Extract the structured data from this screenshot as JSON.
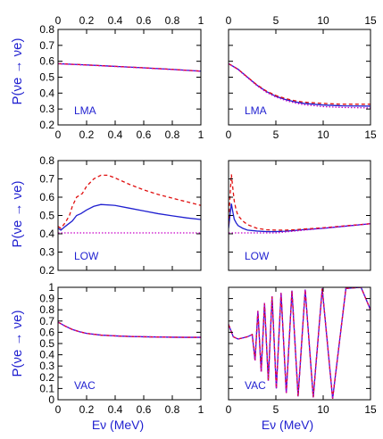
{
  "colors": {
    "blue": "#1f1fd0",
    "red": "#e01010",
    "magenta": "#c800c8",
    "axis": "#000000"
  },
  "ylabel": "P(νe → νe)",
  "xlabel": "Eν (MeV)",
  "chart_data": [
    {
      "type": "line",
      "row": 0,
      "col": 0,
      "label": "LMA",
      "xlim": [
        0,
        1
      ],
      "ylim": [
        0.2,
        0.8
      ],
      "xticks": [
        0,
        0.2,
        0.4,
        0.6,
        0.8,
        1
      ],
      "xticklabels": [
        "0",
        "0.2",
        "0.4",
        "0.6",
        "0.8",
        "1"
      ],
      "yticks": [
        0.2,
        0.3,
        0.4,
        0.5,
        0.6,
        0.7,
        0.8
      ],
      "yticklabels": [
        "0.2",
        "0.3",
        "0.4",
        "0.5",
        "0.6",
        "0.7",
        "0.8"
      ],
      "series": [
        {
          "color": "blue",
          "dash": "solid",
          "x": [
            0,
            0.2,
            0.4,
            0.6,
            0.8,
            1
          ],
          "y": [
            0.585,
            0.577,
            0.568,
            0.559,
            0.549,
            0.538
          ]
        },
        {
          "color": "red",
          "dash": "dashed",
          "x": [
            0,
            0.2,
            0.4,
            0.6,
            0.8,
            1
          ],
          "y": [
            0.585,
            0.577,
            0.568,
            0.559,
            0.549,
            0.538
          ]
        },
        {
          "color": "magenta",
          "dash": "dotted",
          "x": [
            0,
            0.2,
            0.4,
            0.6,
            0.8,
            1
          ],
          "y": [
            0.584,
            0.576,
            0.567,
            0.558,
            0.548,
            0.537
          ]
        }
      ]
    },
    {
      "type": "line",
      "row": 0,
      "col": 1,
      "label": "LMA",
      "xlim": [
        0,
        15
      ],
      "ylim": [
        0.2,
        0.8
      ],
      "xticks": [
        0,
        5,
        10,
        15
      ],
      "xticklabels": [
        "0",
        "5",
        "10",
        "15"
      ],
      "yticks": [
        0.2,
        0.3,
        0.4,
        0.5,
        0.6,
        0.7,
        0.8
      ],
      "yticklabels": [],
      "series": [
        {
          "color": "blue",
          "dash": "solid",
          "x": [
            0,
            1,
            2,
            3,
            4,
            5,
            6,
            7,
            8,
            10,
            12,
            15
          ],
          "y": [
            0.585,
            0.55,
            0.5,
            0.45,
            0.41,
            0.38,
            0.36,
            0.345,
            0.335,
            0.325,
            0.32,
            0.318
          ]
        },
        {
          "color": "red",
          "dash": "dashed",
          "x": [
            0,
            1,
            2,
            3,
            4,
            5,
            6,
            7,
            8,
            10,
            12,
            15
          ],
          "y": [
            0.585,
            0.55,
            0.5,
            0.452,
            0.413,
            0.385,
            0.366,
            0.352,
            0.343,
            0.335,
            0.33,
            0.33
          ]
        },
        {
          "color": "magenta",
          "dash": "dotted",
          "x": [
            0,
            1,
            2,
            3,
            4,
            5,
            6,
            7,
            8,
            10,
            12,
            15
          ],
          "y": [
            0.585,
            0.548,
            0.497,
            0.447,
            0.405,
            0.375,
            0.354,
            0.338,
            0.327,
            0.315,
            0.31,
            0.307
          ]
        }
      ]
    },
    {
      "type": "line",
      "row": 1,
      "col": 0,
      "label": "LOW",
      "xlim": [
        0,
        1
      ],
      "ylim": [
        0.2,
        0.8
      ],
      "xticks": [
        0,
        0.2,
        0.4,
        0.6,
        0.8,
        1
      ],
      "xticklabels": [],
      "yticks": [
        0.2,
        0.3,
        0.4,
        0.5,
        0.6,
        0.7,
        0.8
      ],
      "yticklabels": [
        "0.2",
        "0.3",
        "0.4",
        "0.5",
        "0.6",
        "0.7",
        "0.8"
      ],
      "series": [
        {
          "color": "blue",
          "dash": "solid",
          "x": [
            0,
            0.02,
            0.05,
            0.1,
            0.13,
            0.16,
            0.2,
            0.25,
            0.3,
            0.4,
            0.5,
            0.6,
            0.7,
            0.8,
            0.9,
            1
          ],
          "y": [
            0.43,
            0.42,
            0.44,
            0.47,
            0.5,
            0.51,
            0.53,
            0.55,
            0.56,
            0.555,
            0.54,
            0.525,
            0.51,
            0.498,
            0.487,
            0.478
          ]
        },
        {
          "color": "red",
          "dash": "dashed",
          "x": [
            0,
            0.02,
            0.05,
            0.08,
            0.1,
            0.13,
            0.17,
            0.2,
            0.25,
            0.3,
            0.35,
            0.4,
            0.5,
            0.6,
            0.7,
            0.8,
            0.9,
            1
          ],
          "y": [
            0.44,
            0.43,
            0.46,
            0.5,
            0.55,
            0.6,
            0.62,
            0.66,
            0.7,
            0.72,
            0.72,
            0.705,
            0.67,
            0.64,
            0.615,
            0.595,
            0.575,
            0.555
          ]
        },
        {
          "color": "magenta",
          "dash": "dotted",
          "x": [
            0,
            1
          ],
          "y": [
            0.405,
            0.405
          ]
        }
      ]
    },
    {
      "type": "line",
      "row": 1,
      "col": 1,
      "label": "LOW",
      "xlim": [
        0,
        15
      ],
      "ylim": [
        0.2,
        0.8
      ],
      "xticks": [
        0,
        5,
        10,
        15
      ],
      "xticklabels": [],
      "yticks": [
        0.2,
        0.3,
        0.4,
        0.5,
        0.6,
        0.7,
        0.8
      ],
      "yticklabels": [],
      "series": [
        {
          "color": "blue",
          "dash": "solid",
          "x": [
            0,
            0.15,
            0.3,
            0.45,
            0.6,
            0.8,
            1,
            1.5,
            2,
            3,
            4,
            5,
            6,
            7,
            8,
            10,
            12,
            15
          ],
          "y": [
            0.43,
            0.5,
            0.565,
            0.52,
            0.48,
            0.46,
            0.445,
            0.43,
            0.42,
            0.415,
            0.412,
            0.412,
            0.414,
            0.418,
            0.423,
            0.43,
            0.44,
            0.455
          ]
        },
        {
          "color": "red",
          "dash": "dashed",
          "x": [
            0,
            0.15,
            0.3,
            0.45,
            0.6,
            0.8,
            1,
            1.5,
            2,
            3,
            4,
            5,
            6,
            7,
            8,
            10,
            12,
            15
          ],
          "y": [
            0.45,
            0.6,
            0.725,
            0.65,
            0.58,
            0.53,
            0.5,
            0.47,
            0.45,
            0.43,
            0.422,
            0.42,
            0.42,
            0.422,
            0.426,
            0.433,
            0.442,
            0.455
          ]
        },
        {
          "color": "magenta",
          "dash": "dotted",
          "x": [
            0,
            5,
            10,
            15
          ],
          "y": [
            0.405,
            0.405,
            0.43,
            0.455
          ]
        }
      ]
    },
    {
      "type": "line",
      "row": 2,
      "col": 0,
      "label": "VAC",
      "xlim": [
        0,
        1
      ],
      "ylim": [
        0,
        1
      ],
      "xticks": [
        0,
        0.2,
        0.4,
        0.6,
        0.8,
        1
      ],
      "xticklabels": [
        "0",
        "0.2",
        "0.4",
        "0.6",
        "0.8",
        "1"
      ],
      "yticks": [
        0,
        0.1,
        0.2,
        0.3,
        0.4,
        0.5,
        0.6,
        0.7,
        0.8,
        0.9,
        1
      ],
      "yticklabels": [
        "0",
        "0.1",
        "0.2",
        "0.3",
        "0.4",
        "0.5",
        "0.6",
        "0.7",
        "0.8",
        "0.9",
        "1"
      ],
      "series": [
        {
          "color": "blue",
          "dash": "solid",
          "x": [
            0,
            0.05,
            0.1,
            0.15,
            0.2,
            0.3,
            0.4,
            0.5,
            0.6,
            0.7,
            0.8,
            0.9,
            1
          ],
          "y": [
            0.69,
            0.655,
            0.625,
            0.605,
            0.59,
            0.575,
            0.568,
            0.563,
            0.56,
            0.558,
            0.556,
            0.555,
            0.555
          ]
        },
        {
          "color": "red",
          "dash": "dashed",
          "x": [
            0,
            0.05,
            0.1,
            0.15,
            0.2,
            0.3,
            0.4,
            0.5,
            0.6,
            0.7,
            0.8,
            0.9,
            1
          ],
          "y": [
            0.69,
            0.655,
            0.625,
            0.605,
            0.59,
            0.575,
            0.568,
            0.563,
            0.56,
            0.558,
            0.556,
            0.555,
            0.555
          ]
        },
        {
          "color": "magenta",
          "dash": "dotted",
          "x": [
            0,
            0.05,
            0.1,
            0.15,
            0.2,
            0.3,
            0.4,
            0.5,
            0.6,
            0.7,
            0.8,
            0.9,
            1
          ],
          "y": [
            0.69,
            0.655,
            0.625,
            0.605,
            0.59,
            0.575,
            0.568,
            0.563,
            0.56,
            0.558,
            0.556,
            0.555,
            0.555
          ]
        }
      ]
    },
    {
      "type": "line",
      "row": 2,
      "col": 1,
      "label": "VAC",
      "xlim": [
        0,
        15
      ],
      "ylim": [
        0,
        1
      ],
      "xticks": [
        0,
        5,
        10,
        15
      ],
      "xticklabels": [
        "0",
        "5",
        "10",
        "15"
      ],
      "yticks": [
        0,
        0.1,
        0.2,
        0.3,
        0.4,
        0.5,
        0.6,
        0.7,
        0.8,
        0.9,
        1
      ],
      "yticklabels": [],
      "series": [
        {
          "color": "blue",
          "dash": "solid",
          "x": [
            0,
            0.5,
            1,
            1.5,
            2,
            2.5,
            2.8,
            3.1,
            3.45,
            3.8,
            4.2,
            4.6,
            5.05,
            5.55,
            6.1,
            6.7,
            7.35,
            8.1,
            8.95,
            9.9,
            11,
            12.4,
            14,
            15
          ],
          "y": [
            0.67,
            0.56,
            0.54,
            0.55,
            0.56,
            0.58,
            0.35,
            0.79,
            0.25,
            0.86,
            0.17,
            0.92,
            0.1,
            0.95,
            0.06,
            0.97,
            0.03,
            0.98,
            0.02,
            0.99,
            0.01,
            0.99,
            1.0,
            0.8
          ]
        },
        {
          "color": "red",
          "dash": "dashed",
          "x": [
            0,
            0.5,
            1,
            1.5,
            2,
            2.5,
            2.8,
            3.1,
            3.45,
            3.8,
            4.2,
            4.6,
            5.05,
            5.55,
            6.1,
            6.7,
            7.35,
            8.1,
            8.95,
            9.9,
            11,
            12.4,
            14,
            15
          ],
          "y": [
            0.67,
            0.56,
            0.54,
            0.55,
            0.56,
            0.58,
            0.35,
            0.79,
            0.25,
            0.86,
            0.17,
            0.92,
            0.1,
            0.95,
            0.06,
            0.97,
            0.03,
            0.98,
            0.02,
            0.99,
            0.01,
            0.99,
            1.0,
            0.8
          ]
        },
        {
          "color": "magenta",
          "dash": "dotted",
          "x": [
            0,
            0.5,
            1,
            1.5,
            2,
            2.5,
            2.8,
            3.1,
            3.45,
            3.8,
            4.2,
            4.6,
            5.05,
            5.55,
            6.1,
            6.7,
            7.35,
            8.1,
            8.95,
            9.9,
            11,
            12.4,
            14,
            15
          ],
          "y": [
            0.67,
            0.56,
            0.54,
            0.55,
            0.56,
            0.58,
            0.35,
            0.79,
            0.25,
            0.86,
            0.17,
            0.92,
            0.1,
            0.95,
            0.06,
            0.97,
            0.03,
            0.98,
            0.02,
            0.99,
            0.01,
            0.99,
            1.0,
            0.8
          ]
        }
      ]
    }
  ]
}
